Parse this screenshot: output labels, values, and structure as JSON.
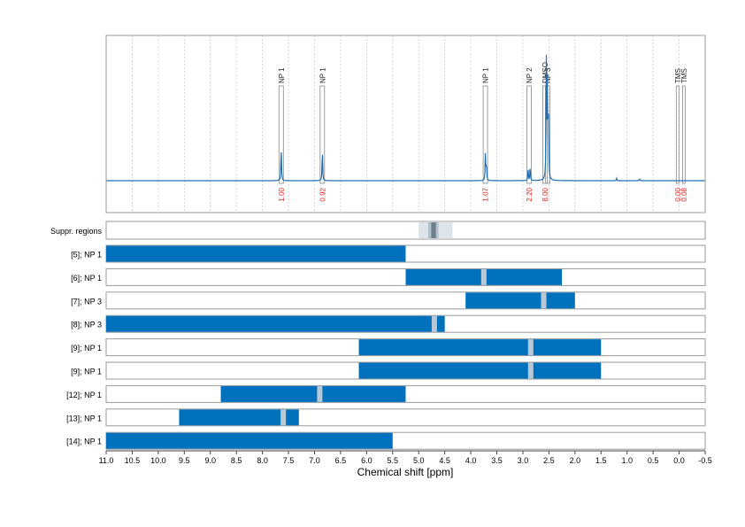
{
  "chart_data": {
    "type": "nmr-spectrum-with-range-tracks",
    "xlabel": "Chemical shift [ppm]",
    "xlim": [
      11.0,
      -0.5
    ],
    "xticks": [
      "11.0",
      "10.5",
      "10.0",
      "9.5",
      "9.0",
      "8.5",
      "8.0",
      "7.5",
      "7.0",
      "6.5",
      "6.0",
      "5.5",
      "5.0",
      "4.5",
      "4.0",
      "3.5",
      "3.0",
      "2.5",
      "2.0",
      "1.5",
      "1.0",
      "0.5",
      "0.0",
      "-0.5"
    ],
    "xtick_values": [
      11.0,
      10.5,
      10.0,
      9.5,
      9.0,
      8.5,
      8.0,
      7.5,
      7.0,
      6.5,
      6.0,
      5.5,
      5.0,
      4.5,
      4.0,
      3.5,
      3.0,
      2.5,
      2.0,
      1.5,
      1.0,
      0.5,
      0.0,
      -0.5
    ],
    "spectrum": {
      "line_color": "#1f6fb2",
      "peaks": [
        {
          "ppm": 7.64,
          "height": 0.3
        },
        {
          "ppm": 6.85,
          "height": 0.27
        },
        {
          "ppm": 3.72,
          "height": 0.22
        },
        {
          "ppm": 3.7,
          "height": 0.14
        },
        {
          "ppm": 2.9,
          "height": 0.1
        },
        {
          "ppm": 2.86,
          "height": 0.12
        },
        {
          "ppm": 2.55,
          "height": 0.95
        },
        {
          "ppm": 2.53,
          "height": 0.8
        },
        {
          "ppm": 2.51,
          "height": 0.62
        },
        {
          "ppm": 1.2,
          "height": 0.02
        },
        {
          "ppm": 0.76,
          "height": 0.015
        }
      ],
      "annotations": [
        {
          "label": "NP 1",
          "ppm": 7.64,
          "integral": "1.00"
        },
        {
          "label": "NP 1",
          "ppm": 6.85,
          "integral": "0.92"
        },
        {
          "label": "NP 1",
          "ppm": 3.72,
          "integral": "1.07"
        },
        {
          "label": "NP 2",
          "ppm": 2.88,
          "integral": "2.20"
        },
        {
          "label": "DMSO",
          "ppm": 2.575,
          "integral": "8.00"
        },
        {
          "label": "NP 3",
          "ppm": 2.525,
          "integral": ""
        },
        {
          "label": "TMS",
          "ppm": 0.03,
          "integral": "0.00"
        },
        {
          "label": "TMS",
          "ppm": -0.09,
          "integral": "0.08"
        }
      ]
    },
    "suppression": {
      "label": "Suppr. regions",
      "regions": [
        {
          "from": 5.0,
          "to": 4.35,
          "shade": "#dde4ea"
        },
        {
          "from": 4.82,
          "to": 4.62,
          "shade": "#b4c0ca"
        },
        {
          "from": 4.76,
          "to": 4.67,
          "shade": "#6e7f8c"
        }
      ]
    },
    "tracks": [
      {
        "label": "[5]; NP 1",
        "from": 11.0,
        "to": 5.25,
        "gaps": []
      },
      {
        "label": "[6]; NP 1",
        "from": 5.25,
        "to": 2.25,
        "gaps": [
          3.75
        ]
      },
      {
        "label": "[7]; NP 3",
        "from": 4.1,
        "to": 2.0,
        "gaps": [
          2.6
        ]
      },
      {
        "label": "[8]; NP 3",
        "from": 11.0,
        "to": 4.5,
        "gaps": [
          4.7
        ]
      },
      {
        "label": "[9]; NP 1",
        "from": 6.15,
        "to": 1.5,
        "gaps": [
          2.85
        ]
      },
      {
        "label": "[9]; NP 1",
        "from": 6.15,
        "to": 1.5,
        "gaps": [
          2.85
        ]
      },
      {
        "label": "[12]; NP 1",
        "from": 8.8,
        "to": 5.25,
        "gaps": [
          6.9
        ]
      },
      {
        "label": "[13]; NP 1",
        "from": 9.6,
        "to": 7.3,
        "gaps": [
          7.6
        ]
      },
      {
        "label": "[14]; NP 1",
        "from": 11.0,
        "to": 5.5,
        "gaps": []
      }
    ],
    "colors": {
      "bar": "#0072bd",
      "gap": "#b9c8d6",
      "integral": "#e0201b",
      "frame": "#9a9a9a",
      "grid": "#c4c4c4"
    }
  }
}
